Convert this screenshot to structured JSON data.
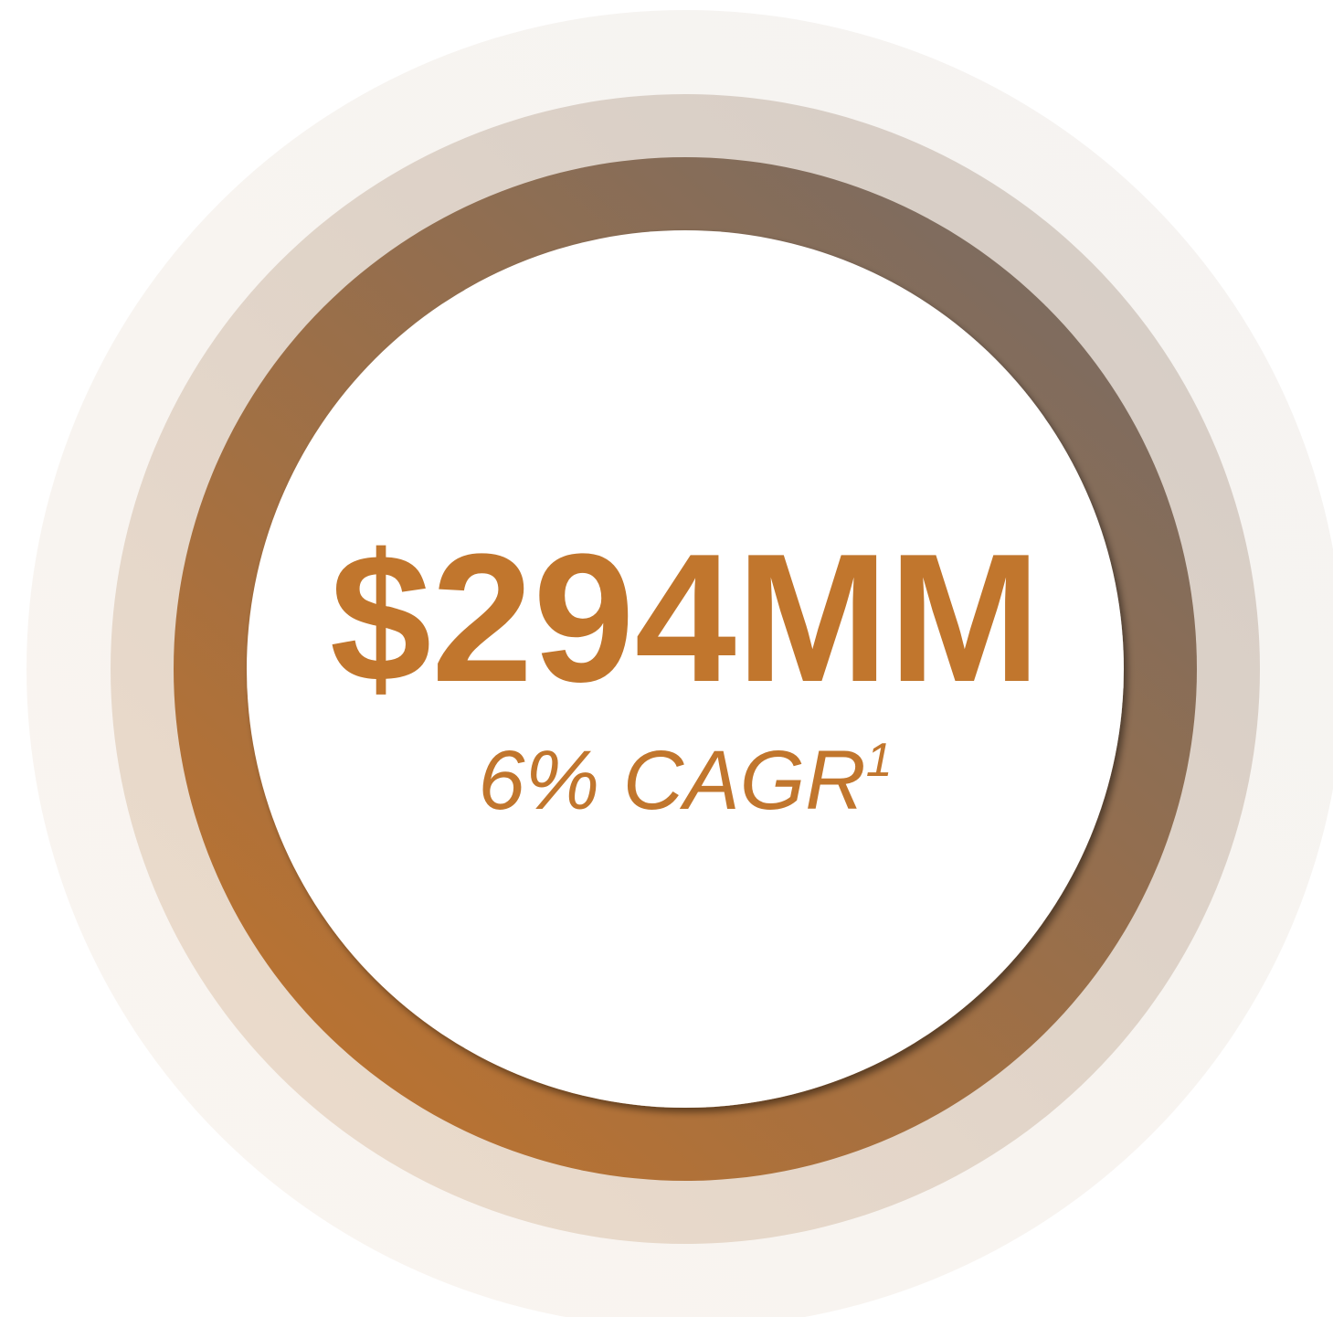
{
  "headline": "$294MM",
  "subtitle": "6% CAGR",
  "footnote_marker": "1"
}
